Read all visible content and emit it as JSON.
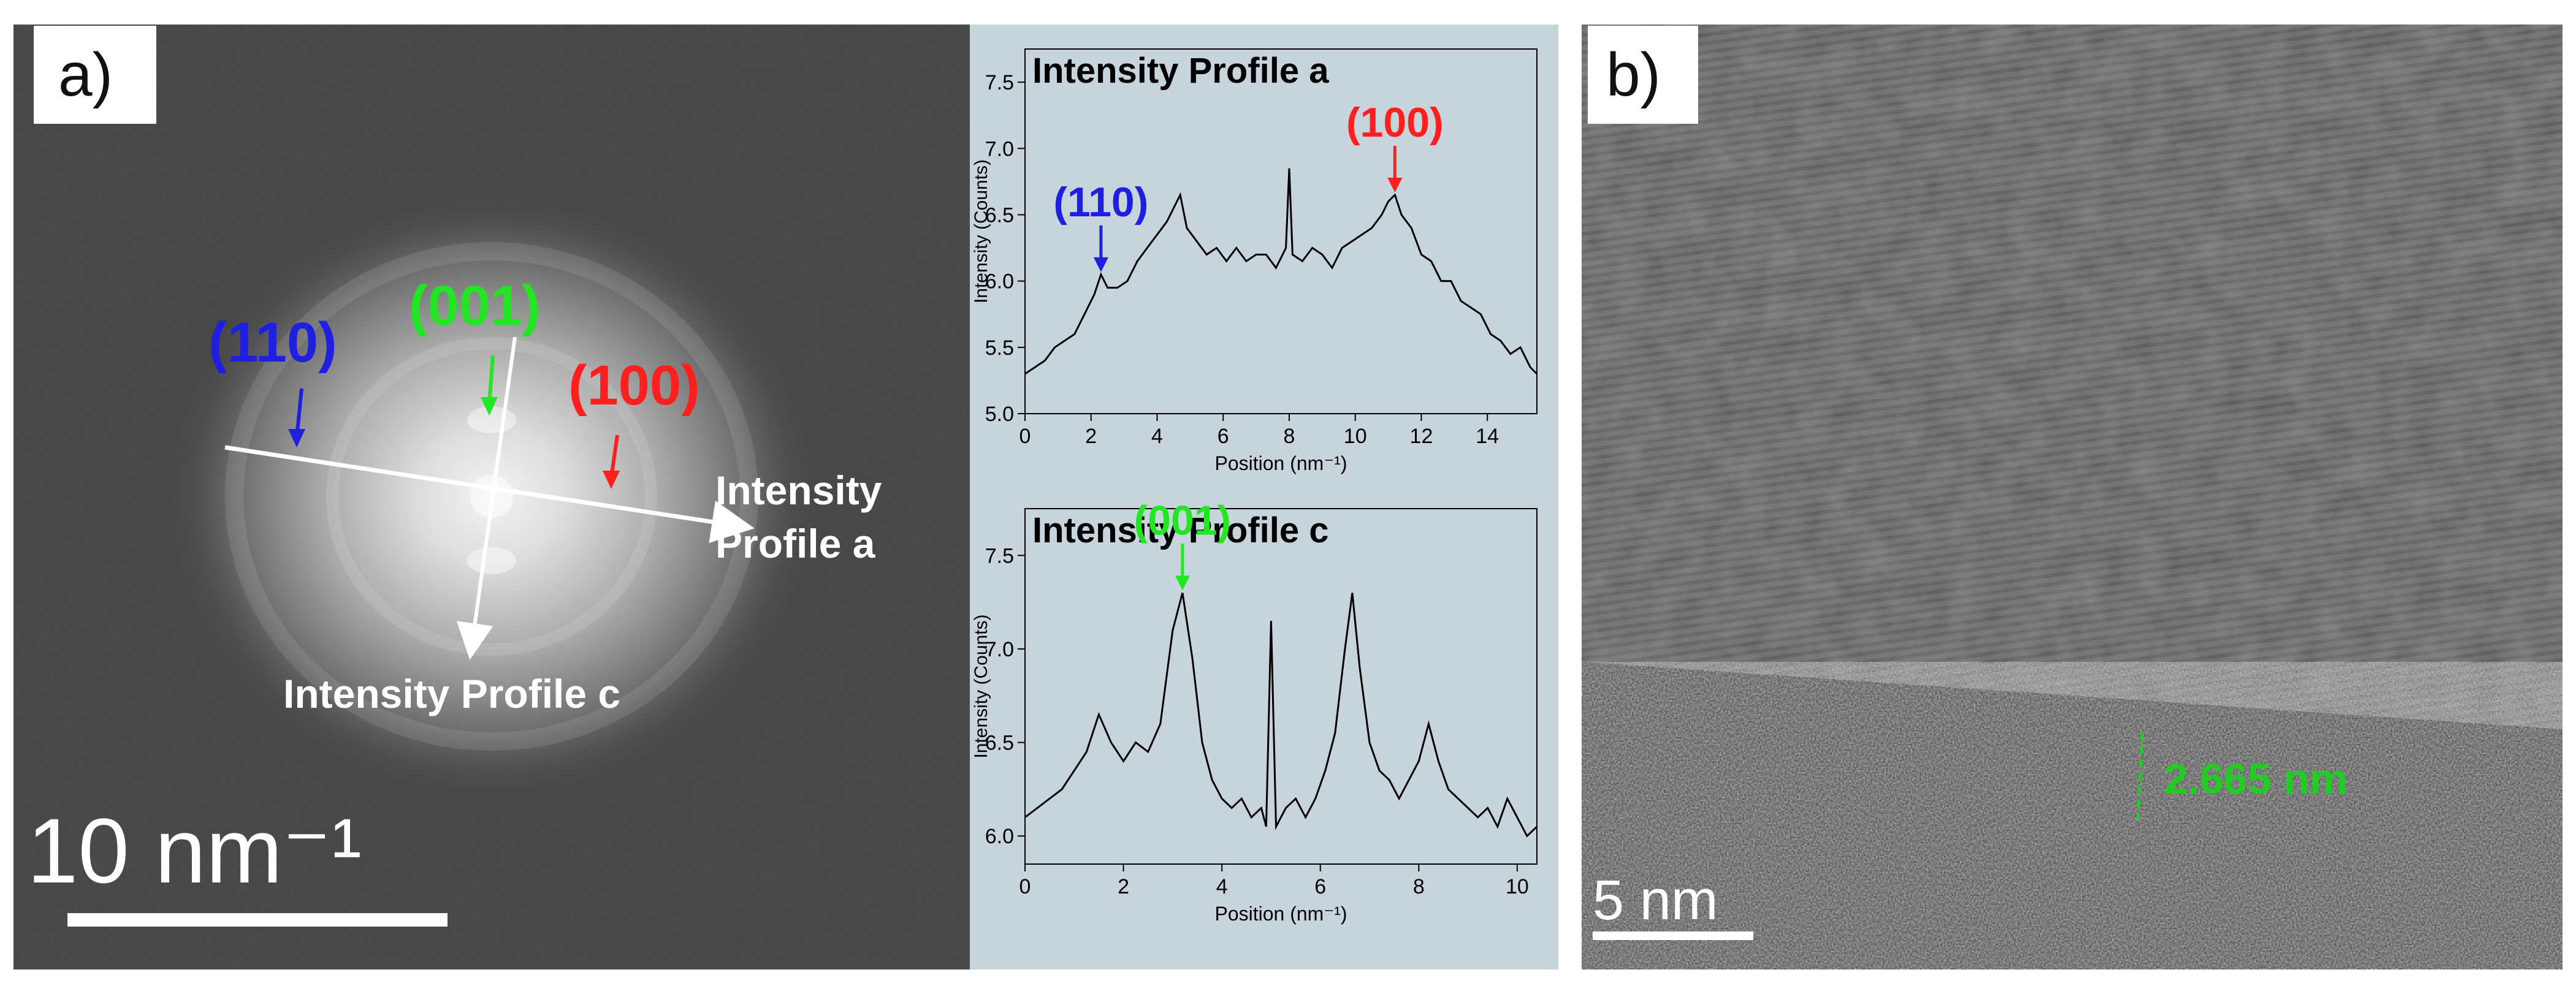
{
  "panel_a": {
    "label": "a)",
    "diffraction": {
      "labels": {
        "p110": "(110)",
        "p001": "(001)",
        "p100": "(100)"
      },
      "profile_a_line1": "Intensity",
      "profile_a_line2": "Profile a",
      "profile_c": "Intensity Profile c",
      "scale_bar": "10 nm⁻¹",
      "colors": {
        "blue": "#1f1fe0",
        "green": "#22e622",
        "red": "#ff1f1f",
        "white": "#ffffff"
      }
    }
  },
  "panel_b": {
    "label": "b)",
    "measurement": "2.665 nm",
    "scale_bar": "5 nm",
    "colors": {
      "green": "#22cc22"
    }
  },
  "chart_data": [
    {
      "type": "line",
      "title": "Intensity Profile a",
      "xlabel": "Position (nm⁻¹)",
      "ylabel": "Intensity (Counts)",
      "xlim": [
        0,
        15.5
      ],
      "ylim": [
        5.0,
        7.75
      ],
      "xticks": [
        0,
        2,
        4,
        6,
        8,
        10,
        12,
        14
      ],
      "yticks": [
        5.0,
        5.5,
        6.0,
        6.5,
        7.0,
        7.5
      ],
      "ytick_labels": [
        "5.0",
        "5.5",
        "6.0",
        "6.5",
        "7.0",
        "7.5"
      ],
      "series": [
        {
          "name": "Intensity Profile a",
          "color": "#000000",
          "x": [
            0,
            0.3,
            0.6,
            0.9,
            1.2,
            1.5,
            1.8,
            2.1,
            2.3,
            2.5,
            2.8,
            3.1,
            3.4,
            3.7,
            4.0,
            4.3,
            4.5,
            4.7,
            4.9,
            5.2,
            5.5,
            5.8,
            6.1,
            6.4,
            6.7,
            7.0,
            7.3,
            7.6,
            7.9,
            8.0,
            8.1,
            8.4,
            8.7,
            9.0,
            9.3,
            9.6,
            9.9,
            10.2,
            10.5,
            10.8,
            11.0,
            11.2,
            11.4,
            11.7,
            12.0,
            12.3,
            12.6,
            12.9,
            13.2,
            13.5,
            13.8,
            14.1,
            14.4,
            14.7,
            15.0,
            15.3,
            15.5
          ],
          "y": [
            5.3,
            5.35,
            5.4,
            5.5,
            5.55,
            5.6,
            5.75,
            5.9,
            6.05,
            5.95,
            5.95,
            6.0,
            6.15,
            6.25,
            6.35,
            6.45,
            6.55,
            6.65,
            6.4,
            6.3,
            6.2,
            6.25,
            6.15,
            6.25,
            6.15,
            6.2,
            6.2,
            6.1,
            6.25,
            6.85,
            6.2,
            6.15,
            6.25,
            6.2,
            6.1,
            6.25,
            6.3,
            6.35,
            6.4,
            6.5,
            6.6,
            6.65,
            6.5,
            6.4,
            6.2,
            6.15,
            6.0,
            6.0,
            5.85,
            5.8,
            5.75,
            5.6,
            5.55,
            5.45,
            5.5,
            5.35,
            5.3
          ]
        }
      ],
      "annotations": [
        {
          "text": "(110)",
          "x": 2.3,
          "y": 6.05,
          "color": "#1f1fe0"
        },
        {
          "text": "(100)",
          "x": 11.2,
          "y": 6.65,
          "color": "#ff1f1f"
        }
      ]
    },
    {
      "type": "line",
      "title": "Intensity Profile c",
      "xlabel": "Position (nm⁻¹)",
      "ylabel": "Intensity (Counts)",
      "xlim": [
        0,
        10.4
      ],
      "ylim": [
        5.85,
        7.75
      ],
      "xticks": [
        0,
        2,
        4,
        6,
        8,
        10
      ],
      "yticks": [
        6.0,
        6.5,
        7.0,
        7.5
      ],
      "ytick_labels": [
        "6.0",
        "6.5",
        "7.0",
        "7.5"
      ],
      "series": [
        {
          "name": "Intensity Profile c",
          "color": "#000000",
          "x": [
            0,
            0.25,
            0.5,
            0.75,
            1.0,
            1.25,
            1.5,
            1.75,
            2.0,
            2.25,
            2.5,
            2.75,
            3.0,
            3.2,
            3.4,
            3.6,
            3.8,
            4.0,
            4.2,
            4.4,
            4.6,
            4.8,
            4.9,
            5.0,
            5.1,
            5.3,
            5.5,
            5.7,
            5.9,
            6.1,
            6.3,
            6.5,
            6.65,
            6.8,
            7.0,
            7.2,
            7.4,
            7.6,
            7.8,
            8.0,
            8.2,
            8.4,
            8.6,
            8.8,
            9.0,
            9.2,
            9.4,
            9.6,
            9.8,
            10.0,
            10.2,
            10.4
          ],
          "y": [
            6.1,
            6.15,
            6.2,
            6.25,
            6.35,
            6.45,
            6.65,
            6.5,
            6.4,
            6.5,
            6.45,
            6.6,
            7.1,
            7.3,
            6.95,
            6.5,
            6.3,
            6.2,
            6.15,
            6.2,
            6.1,
            6.15,
            6.05,
            7.15,
            6.05,
            6.15,
            6.2,
            6.1,
            6.2,
            6.35,
            6.55,
            7.0,
            7.3,
            6.9,
            6.5,
            6.35,
            6.3,
            6.2,
            6.3,
            6.4,
            6.6,
            6.4,
            6.25,
            6.2,
            6.15,
            6.1,
            6.15,
            6.05,
            6.2,
            6.1,
            6.0,
            6.05
          ]
        }
      ],
      "annotations": [
        {
          "text": "(001)",
          "x": 3.2,
          "y": 7.3,
          "color": "#22e622"
        }
      ]
    }
  ]
}
